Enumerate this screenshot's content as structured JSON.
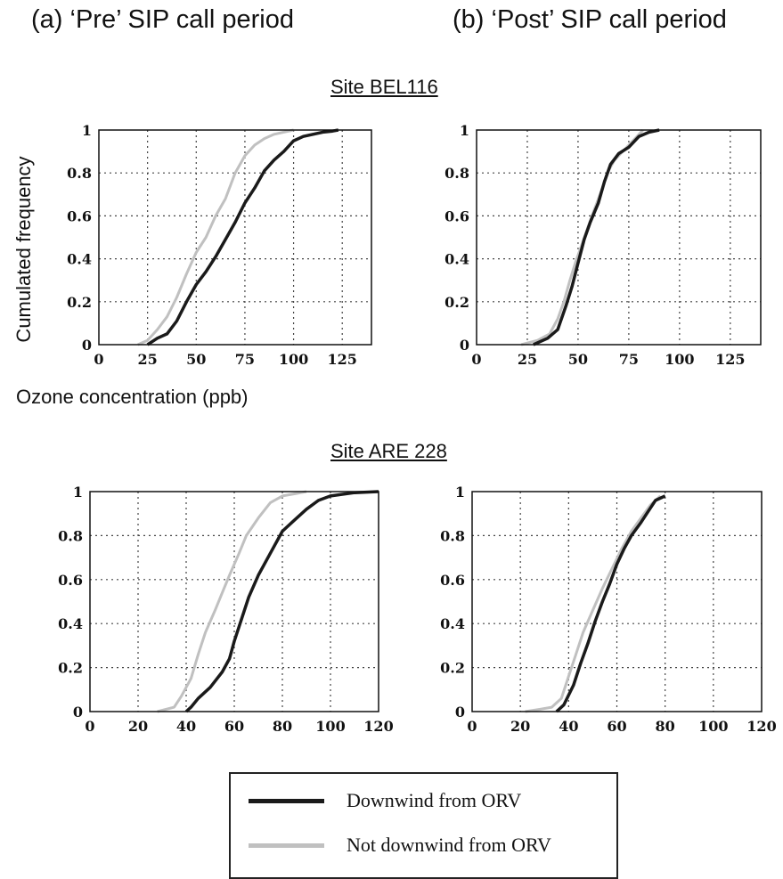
{
  "colors": {
    "downwind": "#1a1a1a",
    "not_downwind": "#c0c0c0"
  },
  "header": {
    "col_a": "(a) ‘Pre’ SIP call period",
    "col_b": "(b) ‘Post’ SIP call period"
  },
  "sites": {
    "site1": "Site BEL116",
    "site2": "Site ARE 228"
  },
  "axes": {
    "ylabel": "Cumulated frequency",
    "xlabel": "Ozone concentration (ppb)"
  },
  "legend": {
    "downwind": "Downwind from ORV",
    "not_downwind": "Not downwind from ORV"
  },
  "chart_data": [
    {
      "type": "line",
      "panel": "BEL116 pre",
      "xlim": [
        0,
        140
      ],
      "ylim": [
        0,
        1
      ],
      "xticks": [
        0,
        25,
        50,
        75,
        100,
        125
      ],
      "yticks": [
        0,
        0.2,
        0.4,
        0.6,
        0.8,
        1
      ],
      "grid": true,
      "series": [
        {
          "name": "Downwind from ORV",
          "x": [
            25,
            30,
            35,
            40,
            45,
            50,
            55,
            60,
            65,
            70,
            75,
            80,
            85,
            90,
            95,
            100,
            105,
            110,
            115,
            120,
            123
          ],
          "y": [
            0,
            0.03,
            0.05,
            0.11,
            0.2,
            0.28,
            0.34,
            0.41,
            0.49,
            0.57,
            0.66,
            0.73,
            0.81,
            0.86,
            0.9,
            0.95,
            0.97,
            0.98,
            0.99,
            0.995,
            1
          ]
        },
        {
          "name": "Not downwind from ORV",
          "x": [
            20,
            25,
            30,
            35,
            40,
            45,
            50,
            55,
            60,
            65,
            70,
            75,
            80,
            85,
            90,
            95,
            100
          ],
          "y": [
            0,
            0.02,
            0.07,
            0.13,
            0.22,
            0.33,
            0.43,
            0.5,
            0.6,
            0.68,
            0.8,
            0.88,
            0.93,
            0.96,
            0.98,
            0.99,
            1
          ]
        }
      ]
    },
    {
      "type": "line",
      "panel": "BEL116 post",
      "xlim": [
        0,
        140
      ],
      "ylim": [
        0,
        1
      ],
      "xticks": [
        0,
        25,
        50,
        75,
        100,
        125
      ],
      "yticks": [
        0,
        0.2,
        0.4,
        0.6,
        0.8,
        1
      ],
      "grid": true,
      "series": [
        {
          "name": "Downwind from ORV",
          "x": [
            28,
            35,
            40,
            44,
            47,
            50,
            53,
            56,
            60,
            63,
            66,
            70,
            75,
            80,
            85,
            90
          ],
          "y": [
            0,
            0.03,
            0.07,
            0.18,
            0.27,
            0.38,
            0.49,
            0.57,
            0.66,
            0.76,
            0.84,
            0.89,
            0.92,
            0.97,
            0.99,
            1
          ]
        },
        {
          "name": "Not downwind from ORV",
          "x": [
            22,
            30,
            36,
            40,
            43,
            46,
            49,
            52,
            55,
            58,
            62,
            65,
            68,
            72,
            77,
            82
          ],
          "y": [
            0,
            0.02,
            0.05,
            0.12,
            0.2,
            0.3,
            0.39,
            0.47,
            0.55,
            0.63,
            0.73,
            0.81,
            0.86,
            0.9,
            0.95,
            1
          ]
        }
      ]
    },
    {
      "type": "line",
      "panel": "ARE 228 pre",
      "xlim": [
        0,
        120
      ],
      "ylim": [
        0,
        1
      ],
      "xticks": [
        0,
        20,
        40,
        60,
        80,
        100,
        120
      ],
      "yticks": [
        0,
        0.2,
        0.4,
        0.6,
        0.8,
        1
      ],
      "grid": true,
      "series": [
        {
          "name": "Downwind from ORV",
          "x": [
            40,
            42,
            45,
            50,
            55,
            58,
            60,
            63,
            66,
            70,
            75,
            80,
            85,
            90,
            95,
            100,
            110,
            120
          ],
          "y": [
            0,
            0.02,
            0.06,
            0.11,
            0.18,
            0.24,
            0.32,
            0.42,
            0.52,
            0.62,
            0.72,
            0.82,
            0.87,
            0.92,
            0.96,
            0.98,
            0.995,
            1
          ]
        },
        {
          "name": "Not downwind from ORV",
          "x": [
            28,
            35,
            38,
            42,
            45,
            48,
            52,
            55,
            58,
            62,
            65,
            70,
            75,
            80,
            85,
            90
          ],
          "y": [
            0,
            0.02,
            0.07,
            0.15,
            0.26,
            0.36,
            0.46,
            0.54,
            0.62,
            0.72,
            0.8,
            0.88,
            0.95,
            0.98,
            0.99,
            1
          ]
        }
      ]
    },
    {
      "type": "line",
      "panel": "ARE 228 post",
      "xlim": [
        0,
        120
      ],
      "ylim": [
        0,
        1
      ],
      "xticks": [
        0,
        20,
        40,
        60,
        80,
        100,
        120
      ],
      "yticks": [
        0,
        0.2,
        0.4,
        0.6,
        0.8,
        1
      ],
      "grid": true,
      "series": [
        {
          "name": "Downwind from ORV",
          "x": [
            35,
            38,
            42,
            45,
            48,
            51,
            54,
            57,
            60,
            63,
            66,
            70,
            73,
            76,
            80
          ],
          "y": [
            0,
            0.03,
            0.12,
            0.22,
            0.31,
            0.41,
            0.5,
            0.58,
            0.67,
            0.74,
            0.8,
            0.86,
            0.91,
            0.96,
            0.98
          ]
        },
        {
          "name": "Not downwind from ORV",
          "x": [
            22,
            28,
            33,
            37,
            40,
            43,
            46,
            50,
            54,
            58,
            62,
            66,
            70,
            74,
            78
          ],
          "y": [
            0,
            0.01,
            0.02,
            0.06,
            0.16,
            0.26,
            0.36,
            0.46,
            0.56,
            0.65,
            0.74,
            0.82,
            0.88,
            0.94,
            0.98
          ]
        }
      ]
    }
  ]
}
